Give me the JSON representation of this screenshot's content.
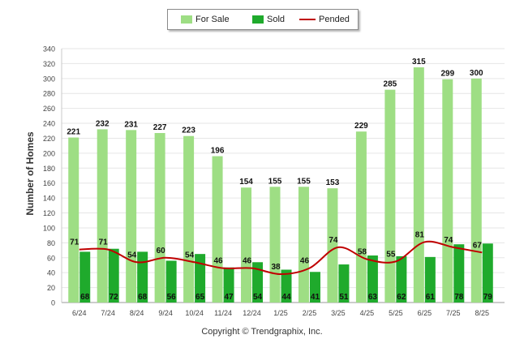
{
  "legend": {
    "items": [
      {
        "label": "For Sale",
        "color": "#9ede84"
      },
      {
        "label": "Sold",
        "color": "#1faa2c"
      },
      {
        "label": "Pended",
        "color": "#c00000"
      }
    ]
  },
  "footer": {
    "copyright": "Copyright © Trendgraphix, Inc."
  },
  "chart_data": {
    "type": "bar",
    "title": "",
    "xlabel": "",
    "ylabel": "Number of Homes",
    "ylim": [
      0,
      340
    ],
    "ytick_step": 20,
    "grid": true,
    "legend_position": "top-center",
    "categories": [
      "6/24",
      "7/24",
      "8/24",
      "9/24",
      "10/24",
      "11/24",
      "12/24",
      "1/25",
      "2/25",
      "3/25",
      "4/25",
      "5/25",
      "6/25",
      "7/25",
      "8/25"
    ],
    "series": [
      {
        "name": "For Sale",
        "type": "bar",
        "color": "#9ede84",
        "values": [
          221,
          232,
          231,
          227,
          223,
          196,
          154,
          155,
          155,
          153,
          229,
          285,
          315,
          299,
          300
        ]
      },
      {
        "name": "Sold",
        "type": "bar",
        "color": "#1faa2c",
        "values": [
          68,
          72,
          68,
          56,
          65,
          47,
          54,
          44,
          41,
          51,
          63,
          62,
          61,
          78,
          79
        ]
      },
      {
        "name": "Pended",
        "type": "line",
        "color": "#c00000",
        "values": [
          71,
          71,
          54,
          60,
          54,
          46,
          46,
          38,
          46,
          74,
          58,
          55,
          81,
          74,
          67
        ]
      }
    ]
  }
}
